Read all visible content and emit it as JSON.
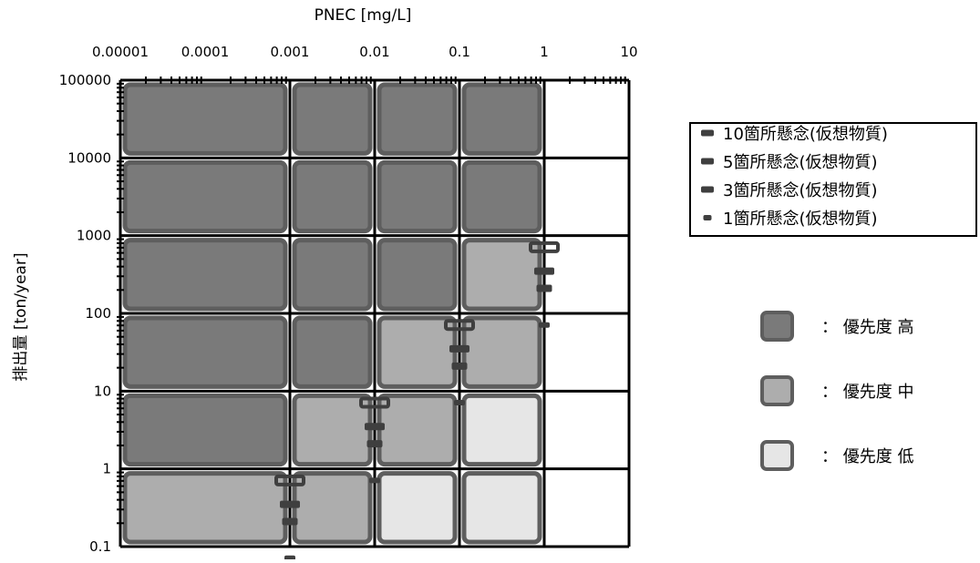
{
  "chart_data": {
    "type": "heatmap",
    "xlabel": "PNEC [mg/L]",
    "ylabel": "排出量 [ton/year]",
    "x_scale": "log",
    "y_scale": "log",
    "xlim": [
      1e-05,
      10
    ],
    "ylim": [
      0.1,
      100000
    ],
    "x_ticks": [
      {
        "value": 1e-05,
        "label": "0.00001"
      },
      {
        "value": 0.0001,
        "label": "0.0001"
      },
      {
        "value": 0.001,
        "label": "0.001"
      },
      {
        "value": 0.01,
        "label": "0.01"
      },
      {
        "value": 0.1,
        "label": "0.1"
      },
      {
        "value": 1,
        "label": "1"
      },
      {
        "value": 10,
        "label": "10"
      }
    ],
    "y_ticks": [
      {
        "value": 0.1,
        "label": "0.1"
      },
      {
        "value": 1,
        "label": "1"
      },
      {
        "value": 10,
        "label": "10"
      },
      {
        "value": 100,
        "label": "100"
      },
      {
        "value": 1000,
        "label": "1000"
      },
      {
        "value": 10000,
        "label": "10000"
      },
      {
        "value": 100000,
        "label": "100000"
      }
    ],
    "grid_x": [
      0.001,
      0.01,
      0.1,
      1,
      10
    ],
    "grid_y": [
      1,
      10,
      100,
      1000,
      10000,
      100000
    ],
    "priority_cells": [
      {
        "x": [
          1e-05,
          0.001
        ],
        "y": [
          10000,
          100000
        ],
        "level": "high"
      },
      {
        "x": [
          0.001,
          0.01
        ],
        "y": [
          10000,
          100000
        ],
        "level": "high"
      },
      {
        "x": [
          0.01,
          0.1
        ],
        "y": [
          10000,
          100000
        ],
        "level": "high"
      },
      {
        "x": [
          0.1,
          1
        ],
        "y": [
          10000,
          100000
        ],
        "level": "high"
      },
      {
        "x": [
          1e-05,
          0.001
        ],
        "y": [
          1000,
          10000
        ],
        "level": "high"
      },
      {
        "x": [
          0.001,
          0.01
        ],
        "y": [
          1000,
          10000
        ],
        "level": "high"
      },
      {
        "x": [
          0.01,
          0.1
        ],
        "y": [
          1000,
          10000
        ],
        "level": "high"
      },
      {
        "x": [
          0.1,
          1
        ],
        "y": [
          1000,
          10000
        ],
        "level": "high"
      },
      {
        "x": [
          1e-05,
          0.001
        ],
        "y": [
          100,
          1000
        ],
        "level": "high"
      },
      {
        "x": [
          0.001,
          0.01
        ],
        "y": [
          100,
          1000
        ],
        "level": "high"
      },
      {
        "x": [
          0.01,
          0.1
        ],
        "y": [
          100,
          1000
        ],
        "level": "high"
      },
      {
        "x": [
          0.1,
          1
        ],
        "y": [
          100,
          1000
        ],
        "level": "mid"
      },
      {
        "x": [
          1e-05,
          0.001
        ],
        "y": [
          10,
          100
        ],
        "level": "high"
      },
      {
        "x": [
          0.001,
          0.01
        ],
        "y": [
          10,
          100
        ],
        "level": "high"
      },
      {
        "x": [
          0.01,
          0.1
        ],
        "y": [
          10,
          100
        ],
        "level": "mid"
      },
      {
        "x": [
          0.1,
          1
        ],
        "y": [
          10,
          100
        ],
        "level": "mid"
      },
      {
        "x": [
          1e-05,
          0.001
        ],
        "y": [
          1,
          10
        ],
        "level": "high"
      },
      {
        "x": [
          0.001,
          0.01
        ],
        "y": [
          1,
          10
        ],
        "level": "mid"
      },
      {
        "x": [
          0.01,
          0.1
        ],
        "y": [
          1,
          10
        ],
        "level": "mid"
      },
      {
        "x": [
          0.1,
          1
        ],
        "y": [
          1,
          10
        ],
        "level": "low"
      },
      {
        "x": [
          1e-05,
          0.001
        ],
        "y": [
          0.1,
          1
        ],
        "level": "mid"
      },
      {
        "x": [
          0.001,
          0.01
        ],
        "y": [
          0.1,
          1
        ],
        "level": "mid"
      },
      {
        "x": [
          0.01,
          0.1
        ],
        "y": [
          0.1,
          1
        ],
        "level": "low"
      },
      {
        "x": [
          0.1,
          1
        ],
        "y": [
          0.1,
          1
        ],
        "level": "low"
      }
    ],
    "priority_legend": [
      {
        "level": "high",
        "label": "： 優先度 高"
      },
      {
        "level": "mid",
        "label": "： 優先度 中"
      },
      {
        "level": "low",
        "label": "： 優先度 低"
      }
    ],
    "series": [
      {
        "name": "10箇所懸念(仮想物質)",
        "marker_size": "large",
        "points": [
          {
            "x": 0.001,
            "y": 0.71
          },
          {
            "x": 0.01,
            "y": 7.1
          },
          {
            "x": 0.1,
            "y": 71
          },
          {
            "x": 1,
            "y": 710
          }
        ]
      },
      {
        "name": "5箇所懸念(仮想物質)",
        "marker_size": "medium",
        "points": [
          {
            "x": 0.001,
            "y": 0.35
          },
          {
            "x": 0.01,
            "y": 3.5
          },
          {
            "x": 0.1,
            "y": 35
          },
          {
            "x": 1,
            "y": 350
          }
        ]
      },
      {
        "name": "3箇所懸念(仮想物質)",
        "marker_size": "medium-small",
        "points": [
          {
            "x": 0.001,
            "y": 0.21
          },
          {
            "x": 0.01,
            "y": 2.1
          },
          {
            "x": 0.1,
            "y": 21
          },
          {
            "x": 1,
            "y": 210
          }
        ]
      },
      {
        "name": "1箇所懸念(仮想物質)",
        "marker_size": "small",
        "points": [
          {
            "x": 0.001,
            "y": 0.071
          },
          {
            "x": 0.01,
            "y": 0.71
          },
          {
            "x": 0.1,
            "y": 7.1
          },
          {
            "x": 1,
            "y": 71
          }
        ]
      }
    ],
    "colors": {
      "high_fill": "#7a7a7a",
      "mid_fill": "#adadad",
      "low_fill": "#e6e6e6",
      "cell_border": "#5e5e5e",
      "marker": "#3f3f3f",
      "grid": "#000000"
    },
    "legend_position": "top-right",
    "grid": true
  }
}
